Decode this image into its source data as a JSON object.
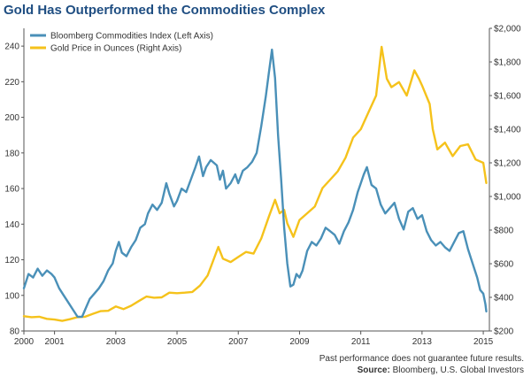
{
  "chart_data": {
    "type": "line",
    "title": "Gold Has Outperformed the Commodities Complex",
    "x_ticks": [
      "2000",
      "2001",
      "2003",
      "2005",
      "2007",
      "2009",
      "2011",
      "2013",
      "2015"
    ],
    "xlim": [
      2000,
      2015.2
    ],
    "left_axis": {
      "ticks": [
        "80",
        "100",
        "120",
        "140",
        "160",
        "180",
        "200",
        "220",
        "240"
      ],
      "ylim": [
        80,
        250
      ]
    },
    "right_axis": {
      "ticks": [
        "$200",
        "$400",
        "$600",
        "$800",
        "$1,000",
        "$1,200",
        "$1,400",
        "$1,600",
        "$1,800",
        "$2,000"
      ],
      "ylim": [
        200,
        2000
      ]
    },
    "grid": false,
    "legend": "top-left",
    "series": [
      {
        "name": "Bloomberg Commodities Index (Left Axis)",
        "axis": "left",
        "color": "#4a90b8",
        "points": [
          [
            2000.0,
            104
          ],
          [
            2000.15,
            112
          ],
          [
            2000.3,
            110
          ],
          [
            2000.45,
            115
          ],
          [
            2000.6,
            111
          ],
          [
            2000.75,
            114
          ],
          [
            2000.9,
            112
          ],
          [
            2001.0,
            110
          ],
          [
            2001.15,
            104
          ],
          [
            2001.3,
            100
          ],
          [
            2001.45,
            96
          ],
          [
            2001.6,
            92
          ],
          [
            2001.75,
            88
          ],
          [
            2001.9,
            88
          ],
          [
            2002.0,
            92
          ],
          [
            2002.15,
            98
          ],
          [
            2002.3,
            101
          ],
          [
            2002.45,
            104
          ],
          [
            2002.6,
            108
          ],
          [
            2002.75,
            114
          ],
          [
            2002.9,
            118
          ],
          [
            2003.0,
            125
          ],
          [
            2003.1,
            130
          ],
          [
            2003.2,
            124
          ],
          [
            2003.35,
            122
          ],
          [
            2003.5,
            127
          ],
          [
            2003.65,
            131
          ],
          [
            2003.8,
            138
          ],
          [
            2003.95,
            140
          ],
          [
            2004.05,
            146
          ],
          [
            2004.2,
            151
          ],
          [
            2004.35,
            148
          ],
          [
            2004.5,
            152
          ],
          [
            2004.65,
            163
          ],
          [
            2004.75,
            157
          ],
          [
            2004.9,
            150
          ],
          [
            2005.0,
            153
          ],
          [
            2005.15,
            160
          ],
          [
            2005.3,
            158
          ],
          [
            2005.45,
            165
          ],
          [
            2005.6,
            172
          ],
          [
            2005.72,
            178
          ],
          [
            2005.85,
            167
          ],
          [
            2005.95,
            172
          ],
          [
            2006.1,
            176
          ],
          [
            2006.3,
            173
          ],
          [
            2006.4,
            165
          ],
          [
            2006.5,
            170
          ],
          [
            2006.6,
            160
          ],
          [
            2006.75,
            163
          ],
          [
            2006.9,
            168
          ],
          [
            2007.0,
            163
          ],
          [
            2007.15,
            170
          ],
          [
            2007.3,
            172
          ],
          [
            2007.45,
            175
          ],
          [
            2007.6,
            180
          ],
          [
            2007.75,
            195
          ],
          [
            2007.9,
            212
          ],
          [
            2008.0,
            225
          ],
          [
            2008.1,
            238
          ],
          [
            2008.2,
            222
          ],
          [
            2008.3,
            190
          ],
          [
            2008.4,
            165
          ],
          [
            2008.5,
            138
          ],
          [
            2008.6,
            118
          ],
          [
            2008.7,
            105
          ],
          [
            2008.8,
            106
          ],
          [
            2008.9,
            112
          ],
          [
            2009.0,
            110
          ],
          [
            2009.1,
            114
          ],
          [
            2009.25,
            125
          ],
          [
            2009.4,
            130
          ],
          [
            2009.55,
            128
          ],
          [
            2009.7,
            132
          ],
          [
            2009.85,
            138
          ],
          [
            2010.0,
            136
          ],
          [
            2010.15,
            134
          ],
          [
            2010.3,
            129
          ],
          [
            2010.45,
            136
          ],
          [
            2010.6,
            141
          ],
          [
            2010.75,
            148
          ],
          [
            2010.9,
            158
          ],
          [
            2011.0,
            163
          ],
          [
            2011.1,
            168
          ],
          [
            2011.2,
            172
          ],
          [
            2011.35,
            162
          ],
          [
            2011.5,
            160
          ],
          [
            2011.65,
            151
          ],
          [
            2011.8,
            146
          ],
          [
            2011.95,
            149
          ],
          [
            2012.1,
            152
          ],
          [
            2012.25,
            143
          ],
          [
            2012.4,
            137
          ],
          [
            2012.55,
            147
          ],
          [
            2012.7,
            149
          ],
          [
            2012.85,
            143
          ],
          [
            2013.0,
            145
          ],
          [
            2013.15,
            136
          ],
          [
            2013.3,
            131
          ],
          [
            2013.45,
            128
          ],
          [
            2013.6,
            130
          ],
          [
            2013.75,
            127
          ],
          [
            2013.9,
            125
          ],
          [
            2014.05,
            130
          ],
          [
            2014.2,
            135
          ],
          [
            2014.35,
            136
          ],
          [
            2014.5,
            126
          ],
          [
            2014.65,
            118
          ],
          [
            2014.8,
            110
          ],
          [
            2014.9,
            103
          ],
          [
            2015.0,
            101
          ],
          [
            2015.07,
            95
          ],
          [
            2015.1,
            91
          ]
        ]
      },
      {
        "name": "Gold Price in Ounces (Right Axis)",
        "axis": "right",
        "color": "#f5c21b",
        "points": [
          [
            2000.0,
            288
          ],
          [
            2000.25,
            282
          ],
          [
            2000.5,
            285
          ],
          [
            2000.75,
            272
          ],
          [
            2001.0,
            268
          ],
          [
            2001.25,
            260
          ],
          [
            2001.5,
            270
          ],
          [
            2001.75,
            282
          ],
          [
            2002.0,
            285
          ],
          [
            2002.25,
            302
          ],
          [
            2002.5,
            318
          ],
          [
            2002.75,
            320
          ],
          [
            2003.0,
            346
          ],
          [
            2003.25,
            330
          ],
          [
            2003.5,
            350
          ],
          [
            2003.75,
            378
          ],
          [
            2004.0,
            405
          ],
          [
            2004.25,
            398
          ],
          [
            2004.5,
            400
          ],
          [
            2004.75,
            428
          ],
          [
            2005.0,
            425
          ],
          [
            2005.25,
            428
          ],
          [
            2005.5,
            432
          ],
          [
            2005.75,
            470
          ],
          [
            2006.0,
            530
          ],
          [
            2006.35,
            700
          ],
          [
            2006.5,
            630
          ],
          [
            2006.75,
            610
          ],
          [
            2007.0,
            640
          ],
          [
            2007.25,
            670
          ],
          [
            2007.5,
            660
          ],
          [
            2007.75,
            750
          ],
          [
            2008.0,
            880
          ],
          [
            2008.2,
            980
          ],
          [
            2008.35,
            900
          ],
          [
            2008.5,
            920
          ],
          [
            2008.6,
            840
          ],
          [
            2008.8,
            760
          ],
          [
            2009.0,
            860
          ],
          [
            2009.25,
            900
          ],
          [
            2009.5,
            940
          ],
          [
            2009.75,
            1050
          ],
          [
            2010.0,
            1100
          ],
          [
            2010.25,
            1150
          ],
          [
            2010.5,
            1230
          ],
          [
            2010.75,
            1350
          ],
          [
            2011.0,
            1400
          ],
          [
            2011.25,
            1500
          ],
          [
            2011.5,
            1600
          ],
          [
            2011.68,
            1890
          ],
          [
            2011.85,
            1700
          ],
          [
            2012.0,
            1650
          ],
          [
            2012.25,
            1680
          ],
          [
            2012.5,
            1600
          ],
          [
            2012.75,
            1750
          ],
          [
            2012.9,
            1700
          ],
          [
            2013.0,
            1660
          ],
          [
            2013.25,
            1550
          ],
          [
            2013.35,
            1400
          ],
          [
            2013.5,
            1280
          ],
          [
            2013.75,
            1320
          ],
          [
            2014.0,
            1240
          ],
          [
            2014.25,
            1300
          ],
          [
            2014.5,
            1310
          ],
          [
            2014.75,
            1220
          ],
          [
            2015.0,
            1200
          ],
          [
            2015.1,
            1080
          ]
        ]
      }
    ]
  },
  "footnote": "Past performance does not guarantee future results.",
  "source_label": "Source:",
  "source_text": " Bloomberg, U.S. Global Investors"
}
